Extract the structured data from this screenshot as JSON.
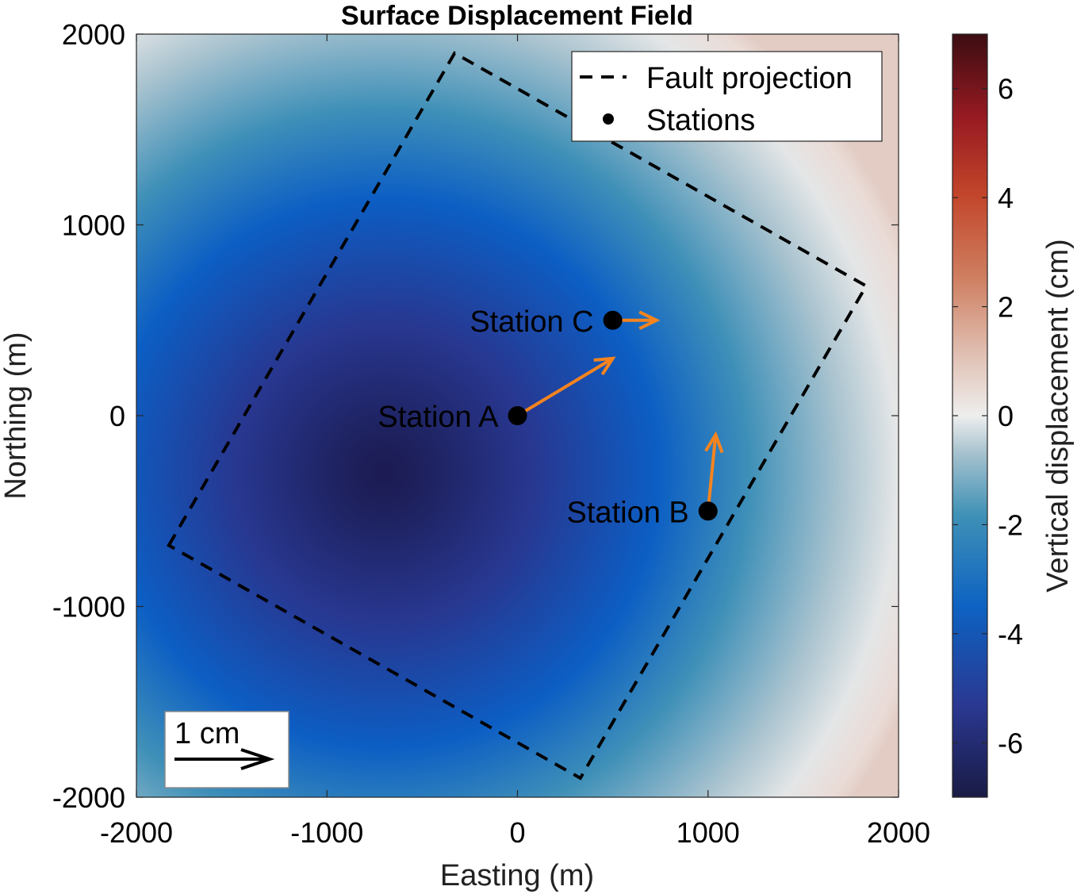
{
  "chart_data": {
    "type": "contour",
    "title": "Surface Displacement Field",
    "xlabel": "Easting (m)",
    "ylabel": "Northing (m)",
    "xlim": [
      -2000,
      2000
    ],
    "ylim": [
      -2000,
      2000
    ],
    "xticks": [
      -2000,
      -1000,
      0,
      1000,
      2000
    ],
    "yticks": [
      -2000,
      -1000,
      0,
      1000,
      2000
    ],
    "xtick_labels": [
      "-2000",
      "-1000",
      "0",
      "1000",
      "2000"
    ],
    "ytick_labels": [
      "-2000",
      "-1000",
      "0",
      "1000",
      "2000"
    ],
    "field": {
      "name": "Vertical displacement",
      "units": "cm",
      "min_center": [
        -700,
        -300
      ],
      "min_value": -6.7
    },
    "colorbar": {
      "label": "Vertical displacement (cm)",
      "clim": [
        -7,
        7
      ],
      "ticks": [
        -6,
        -4,
        -2,
        0,
        2,
        4,
        6
      ],
      "tick_labels": [
        "-6",
        "-4",
        "-2",
        "0",
        "2",
        "4",
        "6"
      ]
    },
    "fault_projection": {
      "corners": [
        [
          -1830,
          -680
        ],
        [
          -330,
          1900
        ],
        [
          1830,
          680
        ],
        [
          330,
          -1900
        ]
      ]
    },
    "stations": [
      {
        "name": "Station A",
        "x": 0,
        "y": 0,
        "dx": 500,
        "dy": 300
      },
      {
        "name": "Station B",
        "x": 1000,
        "y": -500,
        "dx": 40,
        "dy": 400
      },
      {
        "name": "Station C",
        "x": 500,
        "y": 500,
        "dx": 230,
        "dy": 0
      }
    ],
    "legend": {
      "position": "top-right",
      "entries": [
        "Fault projection",
        "Stations"
      ]
    },
    "scale_arrow": {
      "label": "1 cm",
      "position": "bottom-left"
    }
  },
  "colors": {
    "arrow": "#F5841F",
    "fault": "#000000",
    "station": "#000000"
  }
}
